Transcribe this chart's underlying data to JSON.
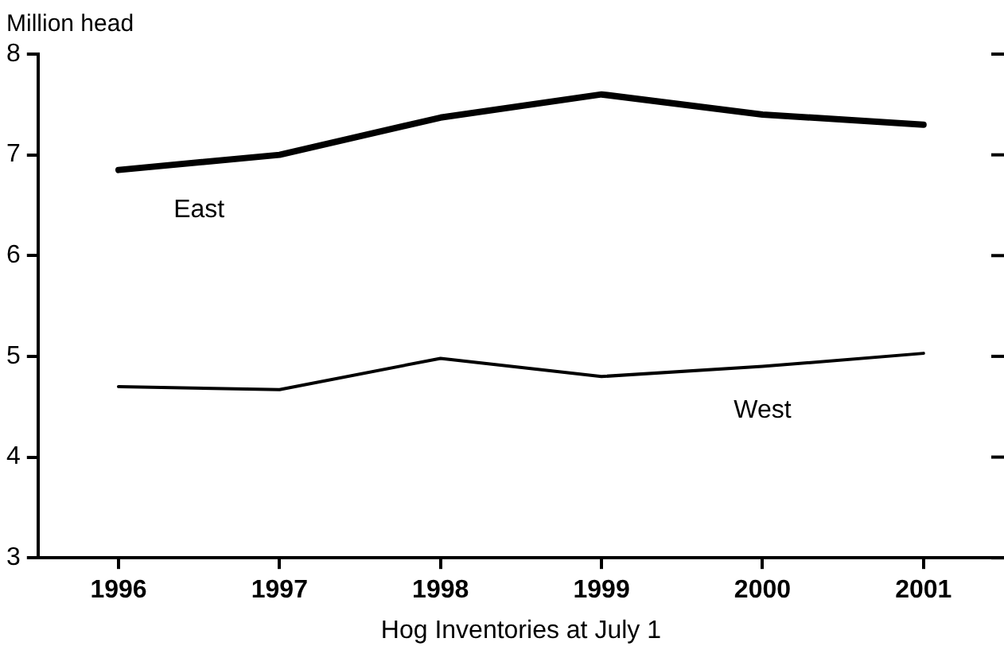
{
  "chart_data": {
    "type": "line",
    "ylabel": "Million head",
    "xlabel": "Hog Inventories at July 1",
    "categories": [
      "1996",
      "1997",
      "1998",
      "1999",
      "2000",
      "2001"
    ],
    "ylim": [
      3,
      8
    ],
    "yticks": [
      3,
      4,
      5,
      6,
      7,
      8
    ],
    "grid": false,
    "legend": false,
    "marker": "none",
    "series": [
      {
        "name": "East",
        "color": "#000000",
        "values": [
          6.85,
          7.0,
          7.37,
          7.6,
          7.4,
          7.3
        ]
      },
      {
        "name": "West",
        "color": "#000000",
        "values": [
          4.7,
          4.67,
          4.98,
          4.8,
          4.9,
          5.03
        ]
      }
    ]
  }
}
